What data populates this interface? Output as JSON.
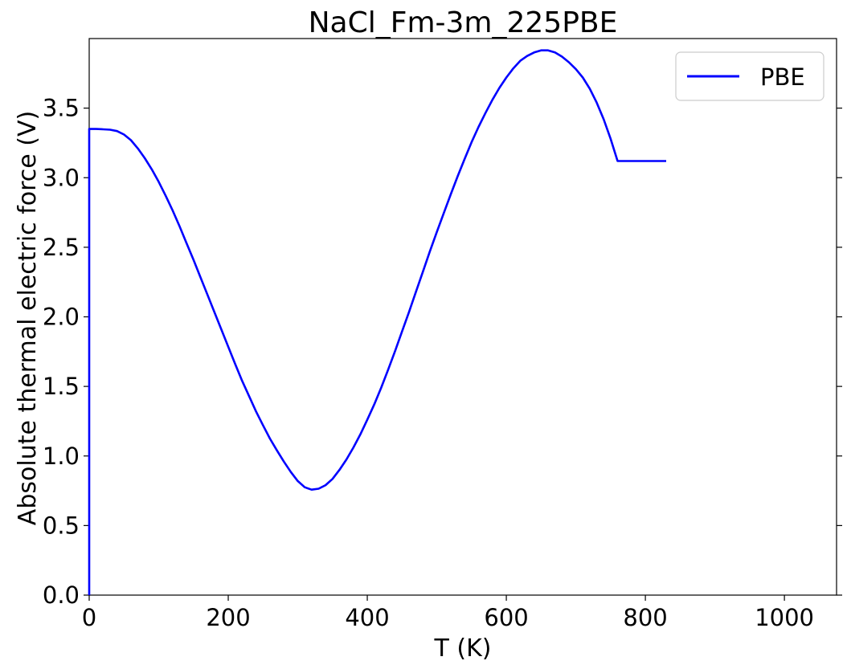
{
  "chart_data": {
    "type": "line",
    "title": "NaCl_Fm-3m_225PBE",
    "xlabel": "T (K)",
    "ylabel": "Absolute thermal electric force (V)",
    "xlim": [
      0,
      1075
    ],
    "ylim": [
      0,
      4.0
    ],
    "xticks": [
      0,
      200,
      400,
      600,
      800,
      1000
    ],
    "xtick_labels": [
      "0",
      "200",
      "400",
      "600",
      "800",
      "1000"
    ],
    "yticks": [
      0.0,
      0.5,
      1.0,
      1.5,
      2.0,
      2.5,
      3.0,
      3.5
    ],
    "ytick_labels": [
      "0.0",
      "0.5",
      "1.0",
      "1.5",
      "2.0",
      "2.5",
      "3.0",
      "3.5"
    ],
    "grid": false,
    "legend_position": "top-right",
    "series": [
      {
        "name": "PBE",
        "color": "#0000ff",
        "x": [
          0,
          0,
          10,
          20,
          30,
          40,
          50,
          60,
          70,
          80,
          90,
          100,
          110,
          120,
          130,
          140,
          150,
          160,
          170,
          180,
          190,
          200,
          210,
          220,
          230,
          240,
          250,
          260,
          270,
          280,
          290,
          300,
          310,
          320,
          330,
          340,
          350,
          360,
          370,
          380,
          390,
          400,
          410,
          420,
          430,
          440,
          450,
          460,
          470,
          480,
          490,
          500,
          510,
          520,
          530,
          540,
          550,
          560,
          570,
          580,
          590,
          600,
          610,
          620,
          630,
          640,
          650,
          660,
          670,
          680,
          690,
          700,
          710,
          720,
          730,
          740,
          750,
          760,
          770,
          780,
          790,
          800,
          810,
          820,
          830
        ],
        "y": [
          0.0,
          3.35,
          3.35,
          3.348,
          3.345,
          3.335,
          3.31,
          3.27,
          3.21,
          3.14,
          3.06,
          2.97,
          2.87,
          2.765,
          2.65,
          2.53,
          2.41,
          2.285,
          2.16,
          2.035,
          1.91,
          1.785,
          1.66,
          1.54,
          1.43,
          1.32,
          1.22,
          1.125,
          1.04,
          0.96,
          0.885,
          0.82,
          0.775,
          0.758,
          0.765,
          0.79,
          0.835,
          0.9,
          0.975,
          1.06,
          1.155,
          1.26,
          1.37,
          1.49,
          1.62,
          1.755,
          1.895,
          2.035,
          2.18,
          2.325,
          2.47,
          2.61,
          2.745,
          2.88,
          3.01,
          3.135,
          3.255,
          3.365,
          3.465,
          3.56,
          3.645,
          3.72,
          3.785,
          3.84,
          3.875,
          3.9,
          3.915,
          3.915,
          3.9,
          3.87,
          3.83,
          3.78,
          3.72,
          3.64,
          3.54,
          3.42,
          3.28,
          3.12,
          3.12,
          3.12,
          3.12,
          3.12,
          3.12,
          3.12,
          3.12
        ]
      }
    ]
  }
}
